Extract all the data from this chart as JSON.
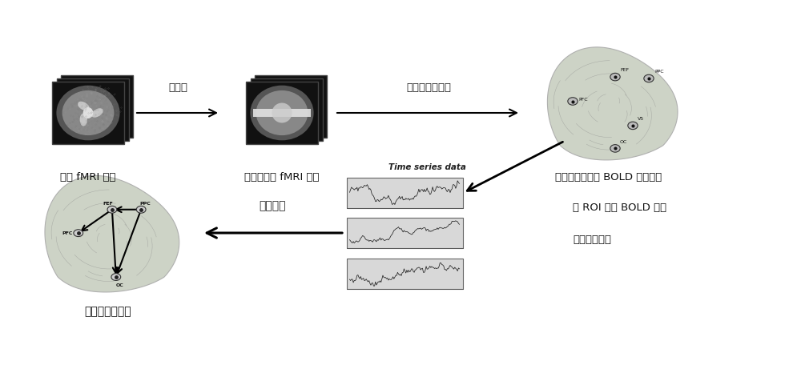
{
  "bg_color": "#ffffff",
  "fig_width": 10.0,
  "fig_height": 4.61,
  "dpi": 100,
  "labels": {
    "raw_fmri": "原始 fMRI 数据",
    "preprocessed_fmri": "预处理后的 fMRI 数据",
    "bold_signal": "感兴趣区域上的 BOLD 磁化信号",
    "time_series_label1": "将 ROI 上的 BOLD 信号",
    "time_series_label2": "转成时间序列",
    "network": "网络构建",
    "brain_network": "脑效应连接网络",
    "preprocessing": "预处理",
    "select_roi": "选择感兴趣区域",
    "time_series_title": "Time series data"
  }
}
